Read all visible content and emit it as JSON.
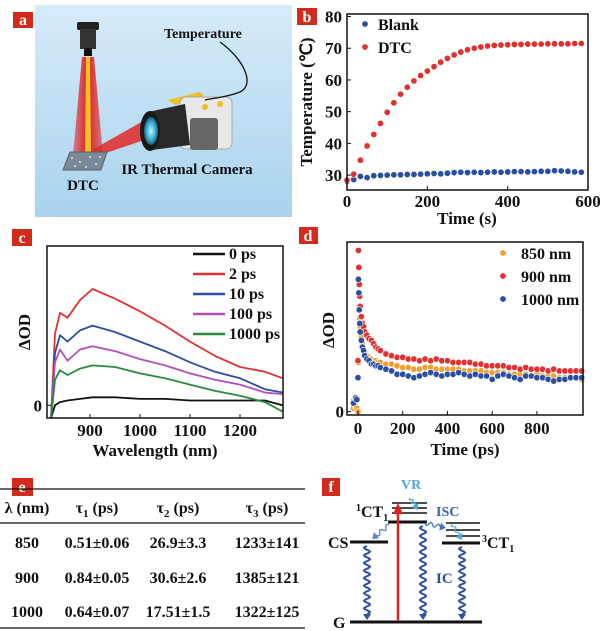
{
  "panel_labels": {
    "a": "a",
    "b": "b",
    "c": "c",
    "d": "d",
    "e": "e",
    "f": "f"
  },
  "colors": {
    "label_bg": "#d42a1e",
    "red": "#e03030",
    "blue": "#2a4fa0",
    "purple": "#b050b8",
    "green": "#2a8a3a",
    "black": "#111111",
    "orange": "#f0a030",
    "light_blue": "#4aa8e0"
  },
  "panel_a": {
    "temperature_label": "Temperature",
    "camera_label": "IR Thermal Camera",
    "sample_label": "DTC"
  },
  "chart_data": [
    {
      "id": "b",
      "type": "scatter",
      "xlabel": "Time (s)",
      "ylabel": "Temperature (℃)",
      "xlim": [
        0,
        600
      ],
      "ylim": [
        25.3,
        80.8
      ],
      "xticks": [
        "0",
        "200",
        "400",
        "600"
      ],
      "yticks": [
        "30",
        "40",
        "50",
        "60",
        "70",
        "80"
      ],
      "legend_position": "top-left",
      "x_step": 16.667,
      "series": [
        {
          "name": "Blank",
          "color": "#2a4fa0",
          "values": [
            28.0,
            28.6,
            29.6,
            29.2,
            29.8,
            29.9,
            30.0,
            30.1,
            30.1,
            30.2,
            30.2,
            30.3,
            30.4,
            30.5,
            30.4,
            30.6,
            30.8,
            30.9,
            30.8,
            30.9,
            30.8,
            30.9,
            31.0,
            30.9,
            31.0,
            31.1,
            31.1,
            31.0,
            31.1,
            31.2,
            31.2,
            31.4,
            31.3,
            31.2,
            31.0,
            30.9,
            30.9
          ]
        },
        {
          "name": "DTC",
          "color": "#e03030",
          "values": [
            28.4,
            30.3,
            34.7,
            39.2,
            42.8,
            46.3,
            49.8,
            52.8,
            55.5,
            57.7,
            59.7,
            61.4,
            62.8,
            64.2,
            65.6,
            66.8,
            67.9,
            68.8,
            69.5,
            70.0,
            70.4,
            70.7,
            70.9,
            71.0,
            71.1,
            71.2,
            71.2,
            71.3,
            71.3,
            71.3,
            71.4,
            71.4,
            71.4,
            71.4,
            71.5,
            71.5,
            71.5
          ]
        }
      ]
    },
    {
      "id": "c",
      "type": "line",
      "xlabel": "Wavelength (nm)",
      "ylabel": "ΔOD",
      "xlim": [
        814,
        1286
      ],
      "ylim": [
        -0.08,
        1.0
      ],
      "xticks": [
        "900",
        "1000",
        "1100",
        "1200"
      ],
      "yticks": [
        "0"
      ],
      "legend_position": "top-right",
      "x": [
        822,
        830,
        840,
        855,
        880,
        905,
        950,
        1000,
        1050,
        1100,
        1150,
        1200,
        1250,
        1285
      ],
      "series": [
        {
          "name": "0 ps",
          "color": "#111111",
          "values": [
            -0.08,
            0.0,
            0.02,
            0.03,
            0.04,
            0.05,
            0.05,
            0.04,
            0.04,
            0.03,
            0.03,
            0.03,
            0.03,
            0.0
          ]
        },
        {
          "name": "2 ps",
          "color": "#e03030",
          "values": [
            -0.08,
            0.45,
            0.58,
            0.55,
            0.66,
            0.73,
            0.67,
            0.59,
            0.5,
            0.4,
            0.31,
            0.24,
            0.21,
            0.17
          ]
        },
        {
          "name": "10 ps",
          "color": "#2a4fa0",
          "values": [
            -0.08,
            0.33,
            0.44,
            0.4,
            0.47,
            0.5,
            0.46,
            0.4,
            0.34,
            0.27,
            0.21,
            0.17,
            0.1,
            0.08
          ]
        },
        {
          "name": "100 ps",
          "color": "#b050b8",
          "values": [
            -0.08,
            0.27,
            0.35,
            0.28,
            0.35,
            0.37,
            0.34,
            0.29,
            0.25,
            0.2,
            0.16,
            0.13,
            0.08,
            0.07
          ]
        },
        {
          "name": "1000 ps",
          "color": "#2a8a3a",
          "values": [
            -0.08,
            0.16,
            0.22,
            0.19,
            0.23,
            0.25,
            0.24,
            0.2,
            0.17,
            0.13,
            0.09,
            0.06,
            0.02,
            -0.04
          ]
        }
      ]
    },
    {
      "id": "d",
      "type": "scatter",
      "xlabel": "Time (ps)",
      "ylabel": "ΔOD",
      "xlim": [
        -49,
        1006
      ],
      "ylim": [
        -0.02,
        1.0
      ],
      "xticks": [
        "0",
        "200",
        "400",
        "600",
        "800"
      ],
      "yticks": [
        "0"
      ],
      "legend_position": "top-right",
      "x": [
        -20,
        -10,
        -5,
        0,
        2,
        4,
        6,
        8,
        10,
        15,
        20,
        25,
        30,
        40,
        50,
        60,
        70,
        80,
        90,
        100,
        125,
        150,
        175,
        200,
        225,
        250,
        275,
        300,
        325,
        350,
        375,
        400,
        425,
        450,
        475,
        500,
        525,
        550,
        575,
        600,
        625,
        650,
        675,
        700,
        725,
        750,
        775,
        800,
        825,
        850,
        875,
        900,
        925,
        950,
        975,
        1000
      ],
      "series": [
        {
          "name": "850 nm",
          "color": "#f0a030",
          "values": [
            0.02,
            0.03,
            0.02,
            0.0,
            0.29,
            0.7,
            0.62,
            0.55,
            0.5,
            0.44,
            0.4,
            0.37,
            0.35,
            0.33,
            0.32,
            0.31,
            0.3,
            0.3,
            0.29,
            0.29,
            0.28,
            0.28,
            0.27,
            0.26,
            0.26,
            0.25,
            0.25,
            0.26,
            0.26,
            0.25,
            0.25,
            0.25,
            0.25,
            0.25,
            0.24,
            0.24,
            0.24,
            0.24,
            0.23,
            0.23,
            0.23,
            0.23,
            0.22,
            0.22,
            0.22,
            0.22,
            0.21,
            0.22,
            0.21,
            0.21,
            0.21,
            0.2,
            0.2,
            0.2,
            0.2,
            0.19
          ]
        },
        {
          "name": "900 nm",
          "color": "#e03030",
          "values": [
            0.06,
            0.07,
            0.08,
            0.3,
            0.95,
            0.85,
            0.75,
            0.68,
            0.62,
            0.56,
            0.52,
            0.5,
            0.47,
            0.45,
            0.43,
            0.42,
            0.4,
            0.38,
            0.37,
            0.36,
            0.34,
            0.33,
            0.32,
            0.32,
            0.31,
            0.31,
            0.3,
            0.31,
            0.3,
            0.31,
            0.3,
            0.3,
            0.29,
            0.29,
            0.29,
            0.29,
            0.28,
            0.28,
            0.27,
            0.27,
            0.27,
            0.27,
            0.26,
            0.26,
            0.25,
            0.26,
            0.25,
            0.25,
            0.25,
            0.24,
            0.25,
            0.24,
            0.24,
            0.24,
            0.24,
            0.24
          ]
        },
        {
          "name": "1000 nm",
          "color": "#2a4fa0",
          "values": [
            0.05,
            0.08,
            0.07,
            0.2,
            0.78,
            0.7,
            0.6,
            0.52,
            0.47,
            0.42,
            0.38,
            0.36,
            0.33,
            0.31,
            0.3,
            0.28,
            0.28,
            0.27,
            0.27,
            0.26,
            0.25,
            0.24,
            0.22,
            0.22,
            0.21,
            0.2,
            0.21,
            0.22,
            0.23,
            0.22,
            0.21,
            0.22,
            0.22,
            0.23,
            0.22,
            0.21,
            0.22,
            0.21,
            0.21,
            0.19,
            0.21,
            0.22,
            0.21,
            0.2,
            0.19,
            0.21,
            0.21,
            0.2,
            0.2,
            0.19,
            0.18,
            0.19,
            0.19,
            0.2,
            0.2,
            0.2
          ]
        }
      ]
    },
    {
      "id": "e",
      "type": "table",
      "headers": [
        {
          "main": "λ (nm)",
          "sub": "",
          "unit": ""
        },
        {
          "main": "τ",
          "sub": "1",
          "unit": " (ps)"
        },
        {
          "main": "τ",
          "sub": "2",
          "unit": " (ps)"
        },
        {
          "main": "τ",
          "sub": "3",
          "unit": " (ps)"
        }
      ],
      "rows": [
        [
          "850",
          "0.51±0.06",
          "26.9±3.3",
          "1233±141"
        ],
        [
          "900",
          "0.84±0.05",
          "30.6±2.6",
          "1385±121"
        ],
        [
          "1000",
          "0.64±0.07",
          "17.51±1.5",
          "1322±125"
        ]
      ]
    }
  ],
  "panel_f": {
    "vr": "VR",
    "isc": "ISC",
    "ic": "IC",
    "cs": "CS",
    "g": "G",
    "ct1_singlet": {
      "pre": "1",
      "main": "CT",
      "sub": "1"
    },
    "ct1_triplet": {
      "pre": "3",
      "main": "CT",
      "sub": "1"
    }
  }
}
